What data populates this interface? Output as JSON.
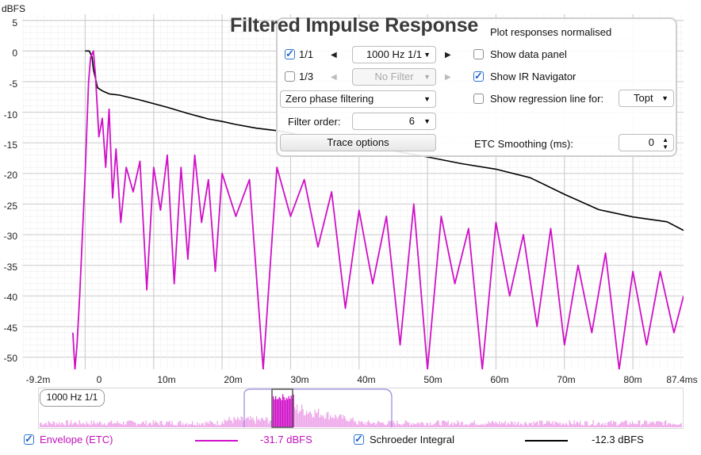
{
  "y_axis_unit": "dBFS",
  "y_ticks": [
    "5",
    "0",
    "-5",
    "-10",
    "-15",
    "-20",
    "-25",
    "-30",
    "-35",
    "-40",
    "-45",
    "-50"
  ],
  "x_ticks": [
    "-9.2m",
    "0",
    "10m",
    "20m",
    "30m",
    "40m",
    "50m",
    "60m",
    "70m",
    "80m",
    "87.4ms"
  ],
  "title": "Filtered Impulse Response",
  "panel": {
    "row1": {
      "checkbox_label": "1/1",
      "checked": true,
      "dropdown": "1000 Hz 1/1"
    },
    "row2": {
      "checkbox_label": "1/3",
      "checked": false,
      "dropdown": "No Filter"
    },
    "filtering_mode": "Zero phase filtering",
    "filter_order_label": "Filter order:",
    "filter_order_value": "6",
    "trace_options": "Trace options",
    "plot_normalised": "Plot responses normalised",
    "show_data_panel": "Show data panel",
    "show_ir_navigator": "Show IR Navigator",
    "show_regression": "Show regression line for:",
    "regression_choice": "Topt",
    "etc_smoothing_label": "ETC Smoothing (ms):",
    "etc_smoothing_value": "0"
  },
  "navigator": {
    "label": "1000 Hz 1/1"
  },
  "legend": {
    "envelope": {
      "label": "Envelope (ETC)",
      "value": "-31.7 dBFS",
      "color": "#d010c8"
    },
    "schroeder": {
      "label": "Schroeder Integral",
      "value": "-12.3 dBFS",
      "color": "#000000"
    }
  },
  "chart_data": {
    "type": "line",
    "ylabel": "dBFS",
    "xlim": [
      -9.2,
      87.4
    ],
    "ylim": [
      -52,
      6
    ],
    "series": [
      {
        "name": "Schroeder Integral",
        "x": [
          0,
          0.6,
          1,
          1.2,
          1.8,
          2.5,
          3.5,
          5,
          8,
          12,
          15,
          18,
          20,
          22,
          25,
          28,
          30,
          35,
          40,
          45,
          50,
          55,
          60,
          65,
          70,
          75,
          80,
          85,
          87.4
        ],
        "y": [
          0,
          0,
          -1,
          -3,
          -6,
          -6.5,
          -7,
          -7.2,
          -8,
          -9.2,
          -10.2,
          -11.1,
          -11.5,
          -12,
          -12.6,
          -13,
          -13.4,
          -14.6,
          -15.8,
          -16.3,
          -17.3,
          -18.4,
          -19.3,
          -20.7,
          -23.4,
          -25.9,
          -27.1,
          -27.9,
          -29.3
        ]
      },
      {
        "name": "Envelope (ETC)",
        "x": [
          -1.8,
          -1.5,
          -1.2,
          -0.8,
          0,
          0.5,
          0.8,
          1.2,
          1.5,
          2,
          2.5,
          3,
          3.5,
          4,
          4.5,
          5.2,
          6,
          7,
          8,
          9,
          10,
          11,
          12,
          13,
          14,
          15,
          16,
          17,
          18,
          19,
          20,
          22,
          24,
          26,
          28,
          30,
          32,
          34,
          36,
          38,
          40,
          42,
          44,
          46,
          48,
          50,
          52,
          54,
          56,
          58,
          60,
          62,
          64,
          66,
          68,
          70,
          72,
          74,
          76,
          78,
          80,
          82,
          84,
          86,
          87.4
        ],
        "y": [
          -46,
          -52,
          -48,
          -40,
          -20,
          -5,
          -1,
          0,
          -4,
          -14,
          -11,
          -19,
          -9.5,
          -24,
          -16,
          -28,
          -19,
          -23,
          -18,
          -39,
          -19,
          -26,
          -17,
          -38,
          -19,
          -34,
          -17,
          -28,
          -21,
          -36,
          -20,
          -27,
          -21,
          -52,
          -19,
          -27,
          -21,
          -32,
          -23,
          -42,
          -26,
          -38,
          -27,
          -48,
          -25,
          -52,
          -27,
          -38,
          -29,
          -52,
          -28,
          -40,
          -30,
          -45,
          -29,
          -48,
          -35,
          -46,
          -33,
          -52,
          -36,
          -48,
          -36,
          -46,
          -40
        ]
      }
    ]
  }
}
